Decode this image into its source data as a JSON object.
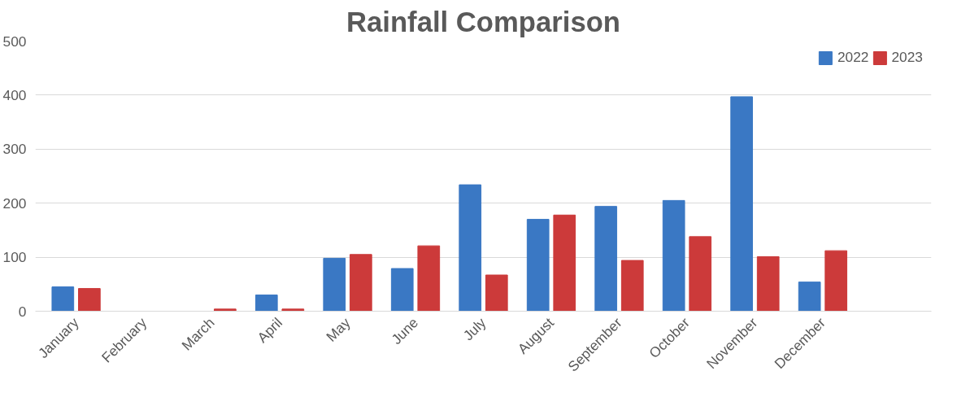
{
  "chart_data": {
    "type": "bar",
    "title": "Rainfall Comparison",
    "categories": [
      "January",
      "February",
      "March",
      "April",
      "May",
      "June",
      "July",
      "August",
      "September",
      "October",
      "November",
      "December"
    ],
    "series": [
      {
        "name": "2022",
        "color": "#3a78c4",
        "values": [
          45,
          0,
          0,
          30,
          98,
          79,
          234,
          170,
          194,
          205,
          397,
          54
        ]
      },
      {
        "name": "2023",
        "color": "#cc3a3a",
        "values": [
          42,
          0,
          4,
          4,
          105,
          121,
          67,
          178,
          94,
          138,
          101,
          112
        ]
      }
    ],
    "ylim": [
      0,
      500
    ],
    "yticks": [
      0,
      100,
      200,
      300,
      400,
      500
    ],
    "grid": "y",
    "legend": "top right"
  }
}
